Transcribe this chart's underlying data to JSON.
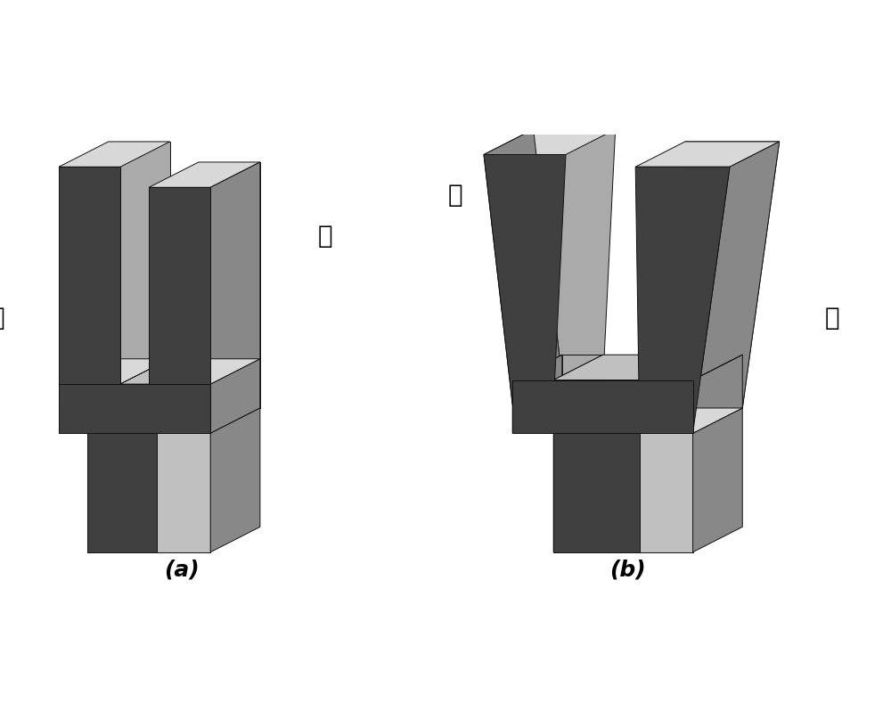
{
  "background_color": "#ffffff",
  "dark_color": "#404040",
  "mid_color": "#888888",
  "light_color": "#aaaaaa",
  "lighter_color": "#c0c0c0",
  "very_light_color": "#d8d8d8",
  "white_gap_color": "#e8e8e8",
  "edge_color": "#111111",
  "label_a": "(a)",
  "label_b": "(b)",
  "label_front": "前",
  "label_back": "后",
  "label_left": "左",
  "label_right": "右",
  "font_size_labels": 20,
  "font_size_caption": 18
}
